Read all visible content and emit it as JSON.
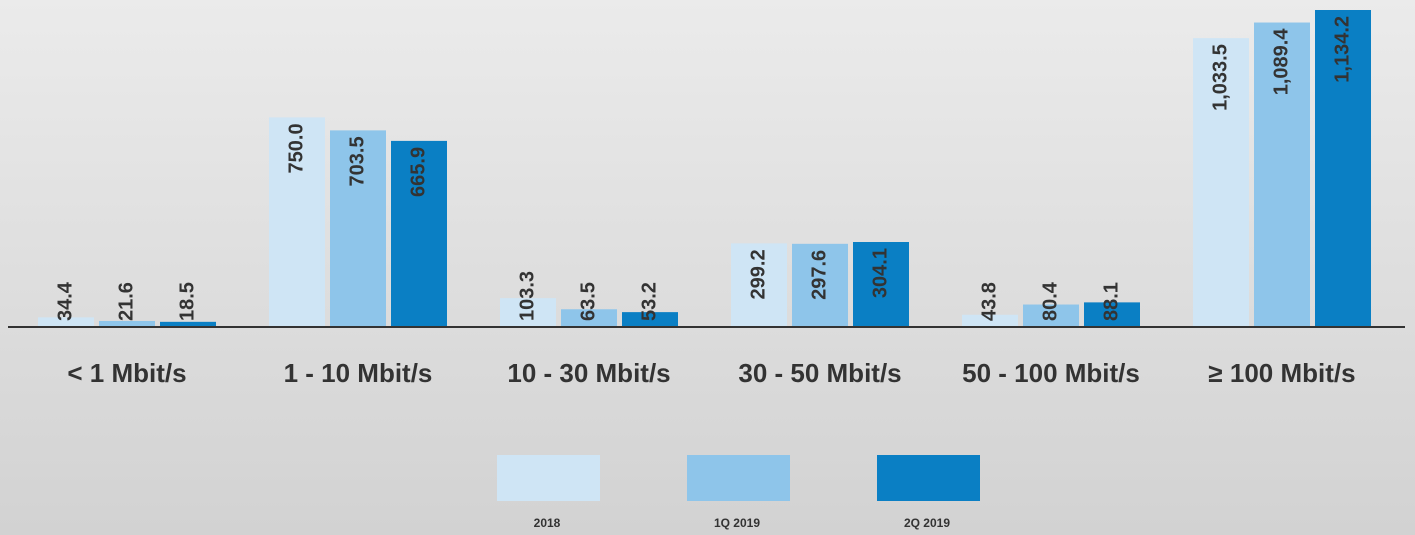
{
  "chart_data": {
    "type": "bar",
    "categories": [
      "< 1 Mbit/s",
      "1 - 10 Mbit/s",
      "10 - 30 Mbit/s",
      "30 - 50 Mbit/s",
      "50 - 100 Mbit/s",
      "≥ 100 Mbit/s"
    ],
    "series": [
      {
        "name": "2018",
        "color": "#cfe5f5",
        "values": [
          34.4,
          750.0,
          103.3,
          299.2,
          43.8,
          1033.5
        ],
        "value_labels": [
          "34.4",
          "750.0",
          "103.3",
          "299.2",
          "43.8",
          "1,033.5"
        ]
      },
      {
        "name": "1Q 2019",
        "color": "#8ec5ea",
        "values": [
          21.6,
          703.5,
          63.5,
          297.6,
          80.4,
          1089.4
        ],
        "value_labels": [
          "21.6",
          "703.5",
          "63.5",
          "297.6",
          "80.4",
          "1,089.4"
        ]
      },
      {
        "name": "2Q 2019",
        "color": "#0a7fc4",
        "values": [
          18.5,
          665.9,
          53.2,
          304.1,
          88.1,
          1134.2
        ],
        "value_labels": [
          "18.5",
          "665.9",
          "53.2",
          "304.1",
          "88.1",
          "1,134.2"
        ]
      }
    ]
  }
}
